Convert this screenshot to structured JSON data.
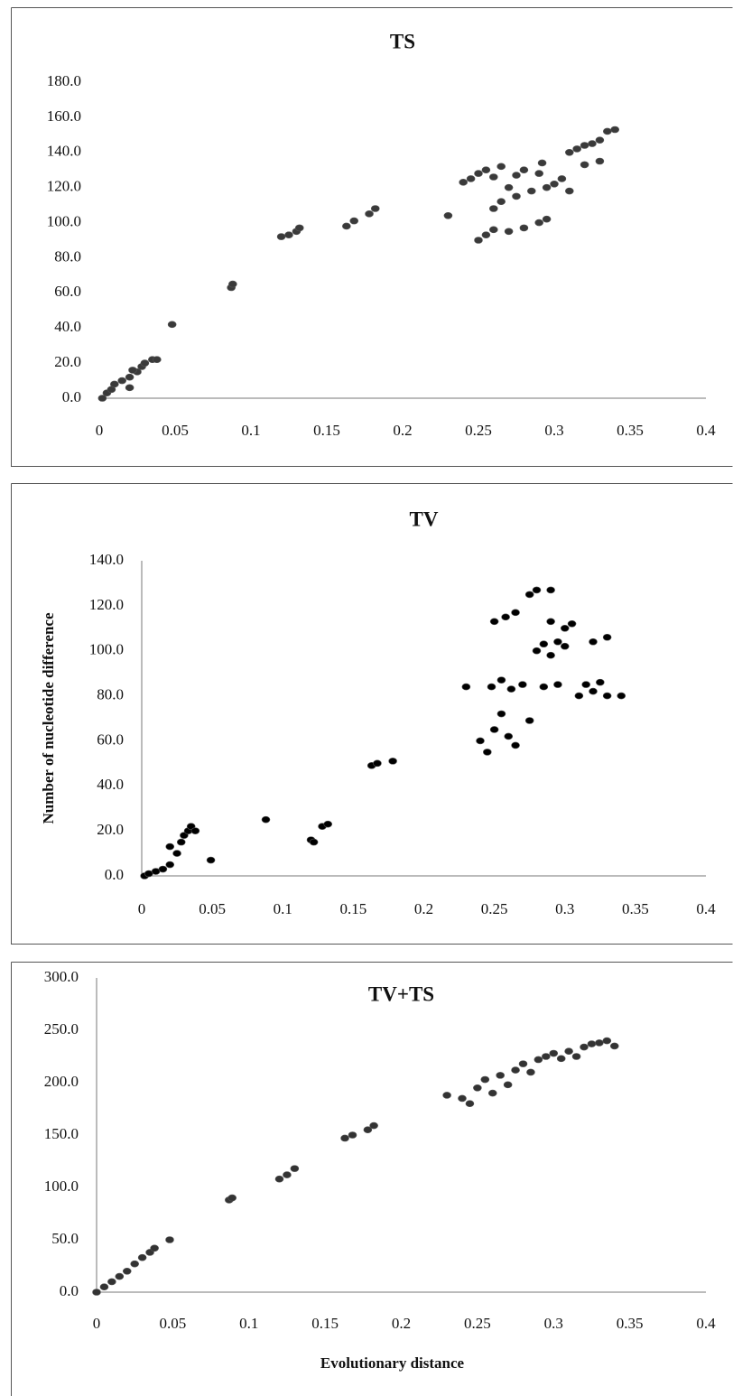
{
  "chart_data": [
    {
      "type": "scatter",
      "title": "TS",
      "color": "#3a3a3a",
      "x": [
        0.002,
        0.005,
        0.008,
        0.01,
        0.015,
        0.02,
        0.025,
        0.028,
        0.03,
        0.035,
        0.038,
        0.02,
        0.022,
        0.048,
        0.087,
        0.088,
        0.12,
        0.125,
        0.13,
        0.132,
        0.163,
        0.168,
        0.178,
        0.182,
        0.23,
        0.24,
        0.245,
        0.25,
        0.255,
        0.26,
        0.265,
        0.27,
        0.275,
        0.28,
        0.29,
        0.292,
        0.25,
        0.255,
        0.26,
        0.27,
        0.28,
        0.29,
        0.295,
        0.26,
        0.265,
        0.275,
        0.285,
        0.295,
        0.3,
        0.305,
        0.31,
        0.31,
        0.315,
        0.32,
        0.325,
        0.33,
        0.335,
        0.34,
        0.32,
        0.33
      ],
      "values": [
        0,
        3,
        5,
        8,
        10,
        12,
        15,
        18,
        20,
        22,
        22,
        6,
        16,
        42,
        63,
        65,
        92,
        93,
        95,
        97,
        98,
        101,
        105,
        108,
        104,
        123,
        125,
        128,
        130,
        126,
        132,
        120,
        127,
        130,
        128,
        134,
        90,
        93,
        96,
        95,
        97,
        100,
        102,
        108,
        112,
        115,
        118,
        120,
        122,
        125,
        118,
        140,
        142,
        144,
        145,
        147,
        152,
        153,
        133,
        135
      ],
      "xlim": [
        0,
        0.4
      ],
      "xticks": [
        0,
        0.05,
        0.1,
        0.15,
        0.2,
        0.25,
        0.3,
        0.35,
        0.4
      ],
      "ylim": [
        0,
        180
      ],
      "yticks": [
        {
          "value": 0,
          "label": "0.0"
        },
        {
          "value": 20,
          "label": "20.0"
        },
        {
          "value": 40,
          "label": "40.0"
        },
        {
          "value": 60,
          "label": "60.0"
        },
        {
          "value": 80,
          "label": "80.0"
        },
        {
          "value": 100,
          "label": "100.0"
        },
        {
          "value": 120,
          "label": "120.0"
        },
        {
          "value": 140,
          "label": "140.0"
        },
        {
          "value": 160,
          "label": "160.0"
        },
        {
          "value": 180,
          "label": "180.0"
        }
      ]
    },
    {
      "type": "scatter",
      "title": "TV",
      "y_label": "Number of nucleotide difference",
      "color": "#000000",
      "x": [
        0.002,
        0.005,
        0.01,
        0.015,
        0.02,
        0.025,
        0.028,
        0.03,
        0.033,
        0.035,
        0.038,
        0.02,
        0.049,
        0.088,
        0.12,
        0.122,
        0.128,
        0.132,
        0.163,
        0.167,
        0.178,
        0.23,
        0.24,
        0.245,
        0.25,
        0.255,
        0.26,
        0.265,
        0.248,
        0.255,
        0.262,
        0.27,
        0.25,
        0.258,
        0.265,
        0.275,
        0.28,
        0.29,
        0.275,
        0.28,
        0.285,
        0.29,
        0.295,
        0.3,
        0.29,
        0.3,
        0.285,
        0.295,
        0.31,
        0.315,
        0.32,
        0.325,
        0.33,
        0.34,
        0.32,
        0.33,
        0.305
      ],
      "values": [
        0,
        1,
        2,
        3,
        5,
        10,
        15,
        18,
        20,
        22,
        20,
        13,
        7,
        25,
        16,
        15,
        22,
        23,
        49,
        50,
        51,
        84,
        60,
        55,
        65,
        72,
        62,
        58,
        84,
        87,
        83,
        85,
        113,
        115,
        117,
        125,
        127,
        127,
        69,
        100,
        103,
        98,
        104,
        102,
        113,
        110,
        84,
        85,
        80,
        85,
        82,
        86,
        80,
        80,
        104,
        106,
        112
      ],
      "xlim": [
        0,
        0.4
      ],
      "xticks": [
        0,
        0.05,
        0.1,
        0.15,
        0.2,
        0.25,
        0.3,
        0.35,
        0.4
      ],
      "ylim": [
        0,
        140
      ],
      "yticks": [
        {
          "value": 0,
          "label": "0.0"
        },
        {
          "value": 20,
          "label": "20.0"
        },
        {
          "value": 40,
          "label": "40.0"
        },
        {
          "value": 60,
          "label": "60.0"
        },
        {
          "value": 80,
          "label": "80.0"
        },
        {
          "value": 100,
          "label": "100.0"
        },
        {
          "value": 120,
          "label": "120.0"
        },
        {
          "value": 140,
          "label": "140.0"
        }
      ]
    },
    {
      "type": "scatter",
      "title": "TV+TS",
      "x_label": "Evolutionary distance",
      "color": "#333333",
      "x": [
        0,
        0.005,
        0.01,
        0.015,
        0.02,
        0.025,
        0.03,
        0.035,
        0.038,
        0.048,
        0.087,
        0.089,
        0.12,
        0.125,
        0.13,
        0.163,
        0.168,
        0.178,
        0.182,
        0.23,
        0.24,
        0.245,
        0.25,
        0.255,
        0.26,
        0.265,
        0.27,
        0.275,
        0.28,
        0.285,
        0.29,
        0.295,
        0.3,
        0.305,
        0.31,
        0.315,
        0.32,
        0.325,
        0.33,
        0.335,
        0.34
      ],
      "values": [
        0,
        5,
        10,
        15,
        20,
        27,
        33,
        38,
        42,
        50,
        88,
        90,
        108,
        112,
        118,
        147,
        150,
        155,
        159,
        188,
        185,
        180,
        195,
        203,
        190,
        207,
        198,
        212,
        218,
        210,
        222,
        225,
        228,
        223,
        230,
        225,
        234,
        237,
        238,
        240,
        235
      ],
      "xlim": [
        0,
        0.4
      ],
      "xticks": [
        0,
        0.05,
        0.1,
        0.15,
        0.2,
        0.25,
        0.3,
        0.35,
        0.4
      ],
      "ylim": [
        0,
        300
      ],
      "yticks": [
        {
          "value": 0,
          "label": "0.0"
        },
        {
          "value": 50,
          "label": "50.0"
        },
        {
          "value": 100,
          "label": "100.0"
        },
        {
          "value": 150,
          "label": "150.0"
        },
        {
          "value": 200,
          "label": "200.0"
        },
        {
          "value": 250,
          "label": "250.0"
        },
        {
          "value": 300,
          "label": "300.0"
        }
      ]
    }
  ]
}
